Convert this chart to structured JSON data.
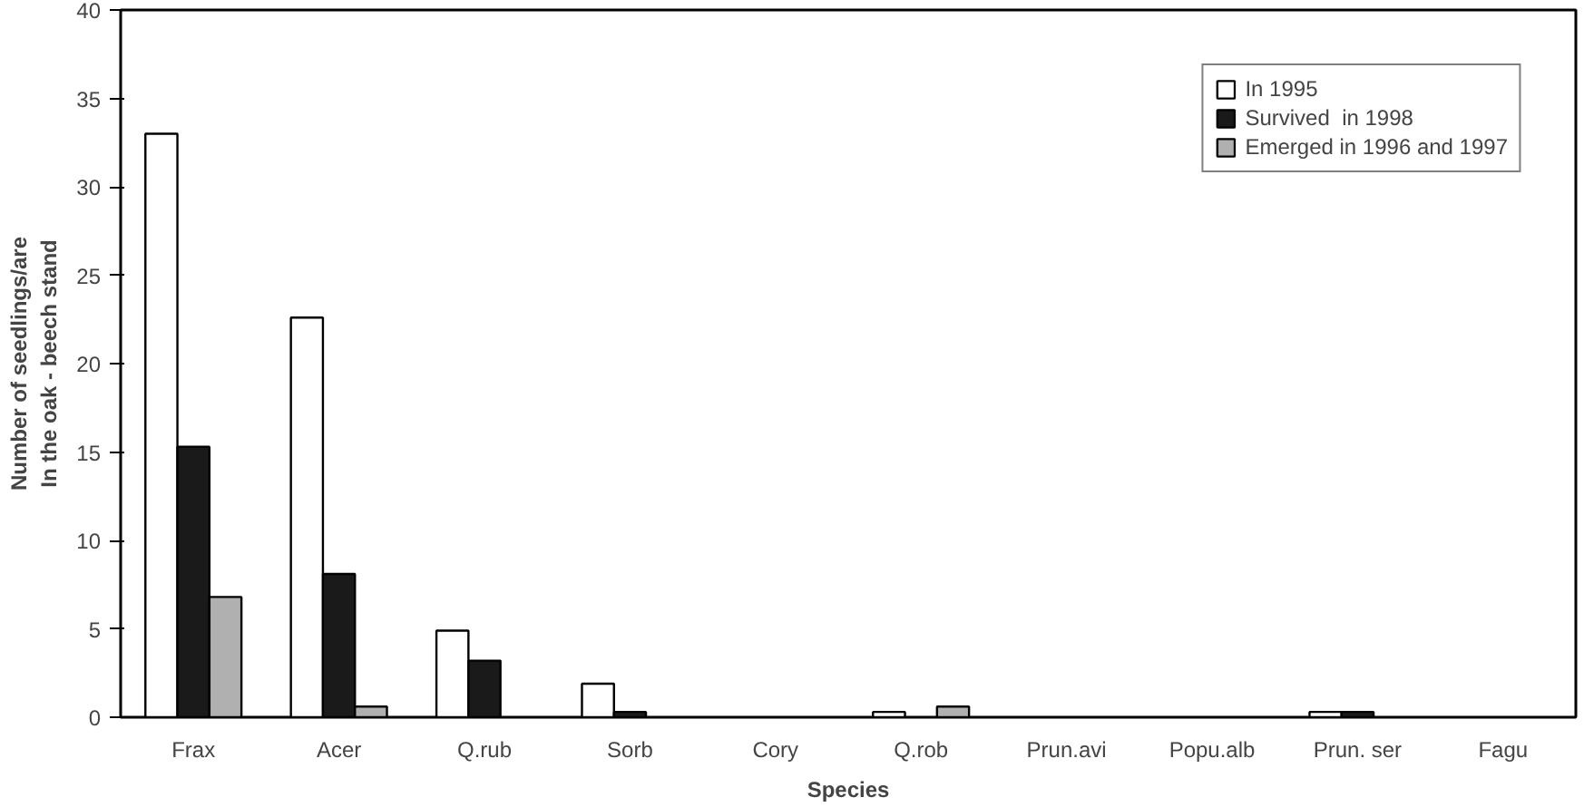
{
  "chart_data": {
    "type": "bar",
    "xlabel": "Species",
    "ylabel": "Number of seedlings/are\nIn the oak - beech stand",
    "categories": [
      "Frax",
      "Acer",
      "Q.rub",
      "Sorb",
      "Cory",
      "Q.rob",
      "Prun.avi",
      "Popu.alb",
      "Prun. ser",
      "Fagu"
    ],
    "series": [
      {
        "name": "In 1995",
        "color": "#ffffff",
        "values": [
          33,
          22.6,
          4.9,
          1.9,
          0,
          0.3,
          0,
          0,
          0.3,
          0
        ]
      },
      {
        "name": "Survived  in 1998",
        "color": "#1a1a1a",
        "values": [
          15.3,
          8.1,
          3.2,
          0.3,
          0,
          0,
          0,
          0,
          0.3,
          0
        ]
      },
      {
        "name": "Emerged in 1996 and 1997",
        "color": "#b0b0b0",
        "values": [
          6.8,
          0.6,
          0,
          0,
          0,
          0.6,
          0,
          0,
          0,
          0
        ]
      }
    ],
    "ylim": [
      0,
      40
    ],
    "yticks": [
      0,
      5,
      10,
      15,
      20,
      25,
      30,
      35,
      40
    ],
    "grid": false,
    "legend": "top right"
  }
}
